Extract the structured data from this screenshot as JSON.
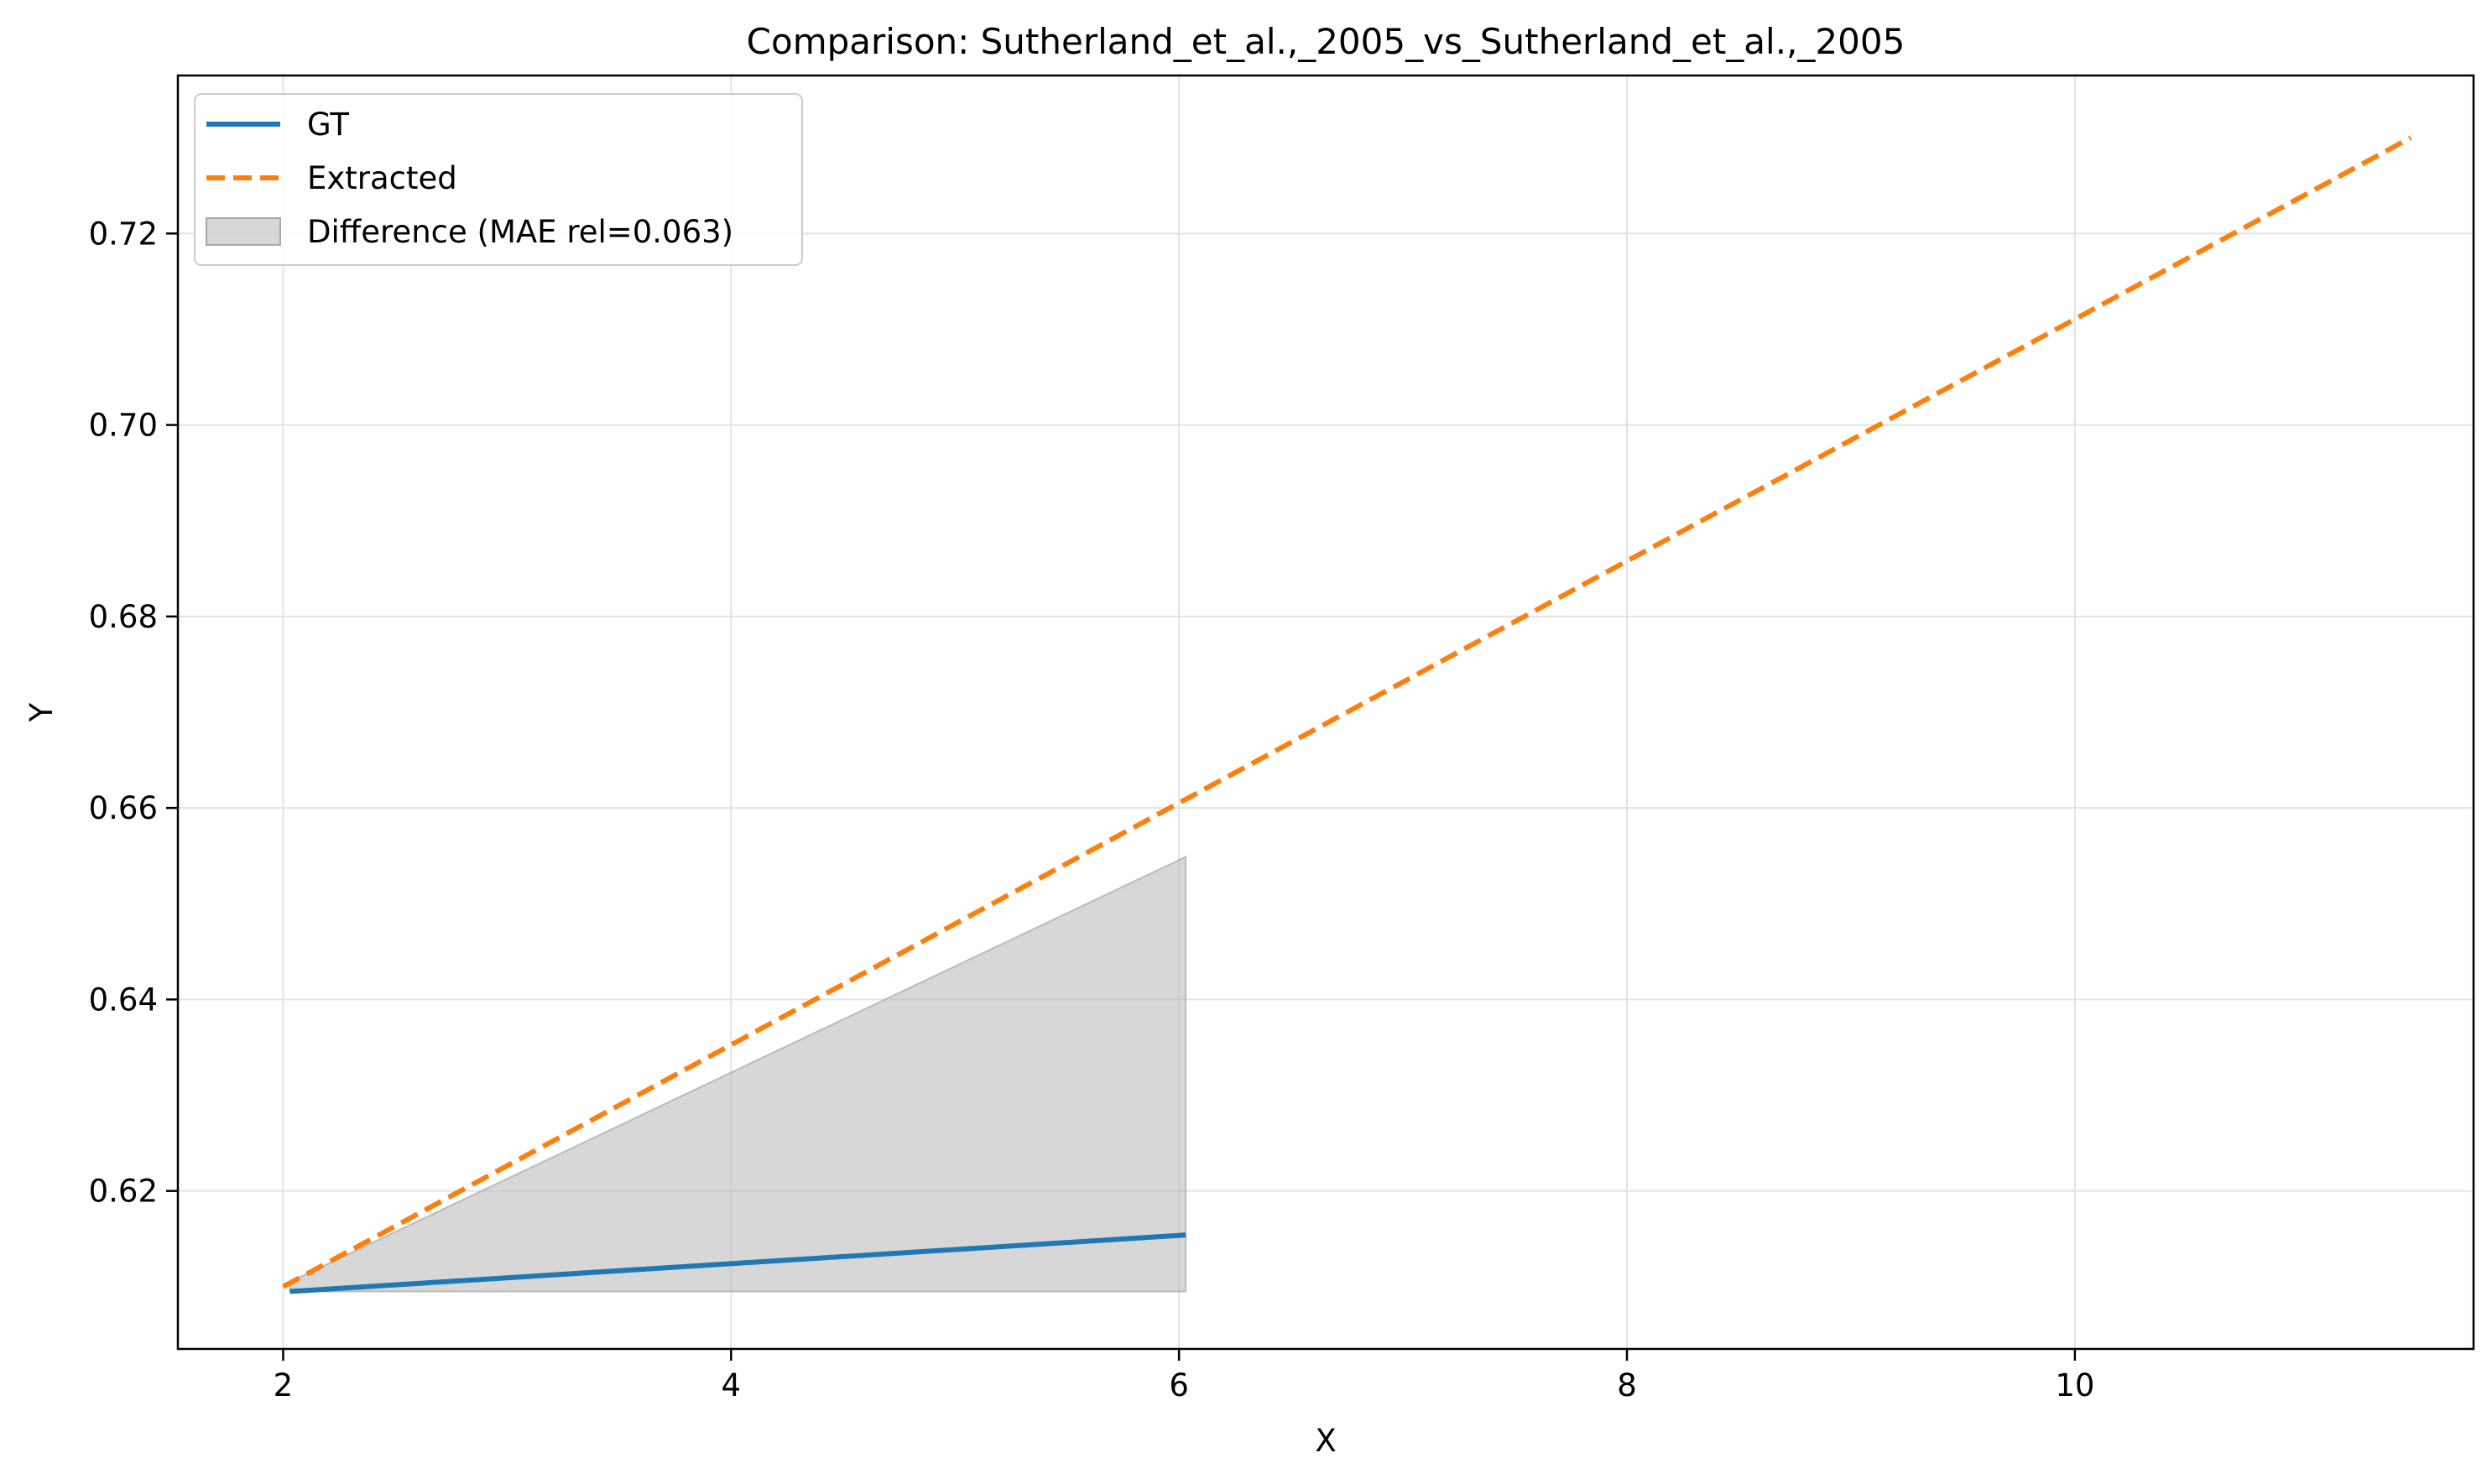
{
  "chart_data": {
    "type": "line",
    "title": "Comparison: Sutherland_et_al.,_2005_vs_Sutherland_et_al.,_2005",
    "xlabel": "X",
    "ylabel": "Y",
    "xlim": [
      1.53,
      11.78
    ],
    "ylim": [
      0.6035,
      0.7365
    ],
    "xticks": [
      2,
      4,
      6,
      8,
      10
    ],
    "yticks": [
      0.62,
      0.64,
      0.66,
      0.68,
      0.7,
      0.72
    ],
    "ytick_labels": [
      "0.62",
      "0.64",
      "0.66",
      "0.68",
      "0.70",
      "0.72"
    ],
    "grid": true,
    "legend_position": "upper-left",
    "series": [
      {
        "name": "GT",
        "style": "solid",
        "color": "#1f77b4",
        "x": [
          2.03,
          6.03
        ],
        "y": [
          0.6095,
          0.6154
        ]
      },
      {
        "name": "Extracted",
        "style": "dashed",
        "color": "#ff7f0e",
        "x": [
          2.0,
          11.5
        ],
        "y": [
          0.61,
          0.73
        ]
      }
    ],
    "fill_between": {
      "name": "Difference (MAE rel=0.063)",
      "color": "#bfbfbf",
      "x": [
        2.03,
        6.03
      ],
      "y_lower": [
        0.6095,
        0.6095
      ],
      "y_upper": [
        0.6105,
        0.6549
      ]
    }
  }
}
